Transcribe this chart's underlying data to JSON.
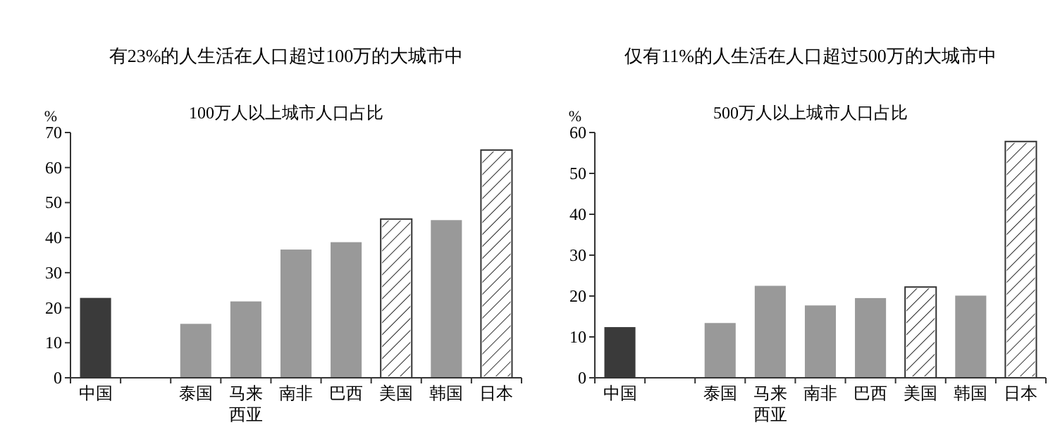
{
  "chart_data": [
    {
      "type": "bar",
      "title": "有23%的人生活在人口超过100万的大城市中",
      "subtitle": "100万人以上城市人口占比",
      "ylabel": "%",
      "categories": [
        "中国",
        null,
        "泰国",
        "马来西亚",
        "南非",
        "巴西",
        "美国",
        "韩国",
        "日本"
      ],
      "values": [
        22.8,
        null,
        15.4,
        21.8,
        36.6,
        38.7,
        45.3,
        45,
        65
      ],
      "colors": [
        "#3a3a3a",
        null,
        "#999999",
        "#999999",
        "#999999",
        "#999999",
        "#ffffff",
        "#999999",
        "#ffffff"
      ],
      "ylim": [
        0,
        70
      ],
      "yticks": [
        0,
        10,
        20,
        30,
        40,
        50,
        60,
        70
      ],
      "grid": false
    },
    {
      "type": "bar",
      "title": "仅有11%的人生活在人口超过500万的大城市中",
      "subtitle": "500万人以上城市人口占比",
      "ylabel": "%",
      "categories": [
        "中国",
        null,
        "泰国",
        "马来西亚",
        "南非",
        "巴西",
        "美国",
        "韩国",
        "日本"
      ],
      "values": [
        12.4,
        null,
        13.4,
        22.5,
        17.7,
        19.5,
        22.2,
        20.1,
        57.8
      ],
      "colors": [
        "#3a3a3a",
        null,
        "#999999",
        "#999999",
        "#999999",
        "#999999",
        "#ffffff",
        "#999999",
        "#ffffff"
      ],
      "ylim": [
        0,
        60
      ],
      "yticks": [
        0,
        10,
        20,
        30,
        40,
        50,
        60
      ],
      "grid": false
    }
  ]
}
